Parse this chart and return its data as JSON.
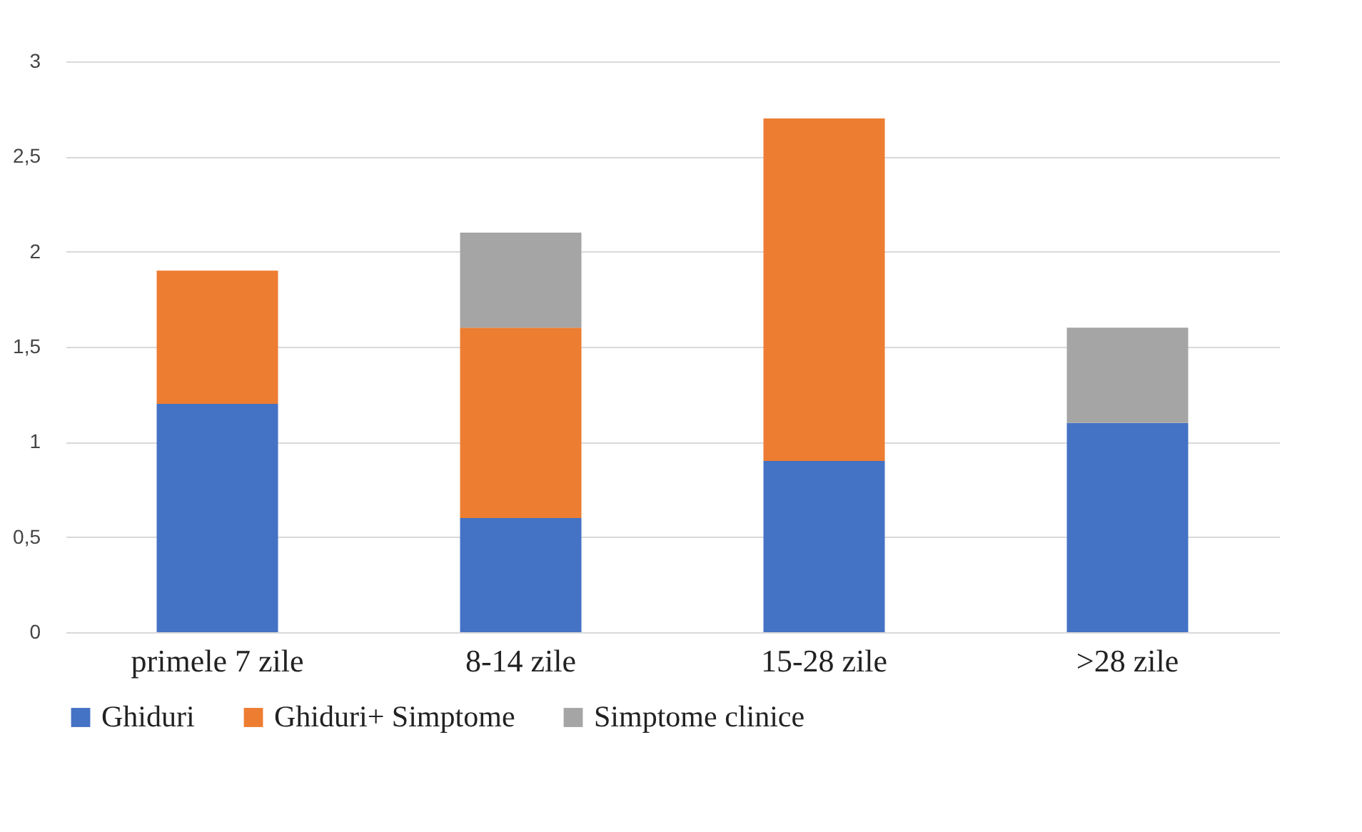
{
  "chart_data": {
    "type": "bar",
    "stacked": true,
    "categories": [
      "primele 7 zile",
      "8-14 zile",
      "15-28 zile",
      ">28 zile"
    ],
    "series": [
      {
        "name": "Ghiduri",
        "color": "#4472c4",
        "values": [
          1.2,
          0.6,
          0.9,
          1.1
        ]
      },
      {
        "name": "Ghiduri+ Simptome",
        "color": "#ed7d31",
        "values": [
          0.7,
          1.0,
          1.8,
          0
        ]
      },
      {
        "name": "Simptome clinice",
        "color": "#a5a5a5",
        "values": [
          0,
          0.5,
          0,
          0.5
        ]
      }
    ],
    "ylim": [
      0,
      3
    ],
    "yticks": [
      0,
      {
        "value": 0.5,
        "label": "0,5"
      },
      1,
      {
        "value": 1.5,
        "label": "1,5"
      },
      2,
      {
        "value": 2.5,
        "label": "2,5"
      },
      3
    ],
    "grid": "y",
    "legend": "bottom"
  }
}
